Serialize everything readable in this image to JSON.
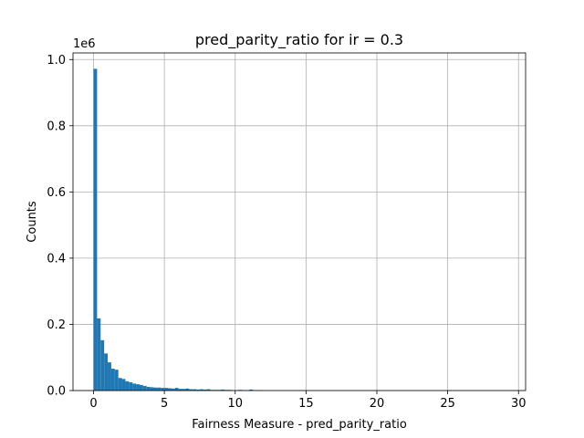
{
  "chart_data": {
    "type": "bar",
    "title": "pred_parity_ratio for ir = 0.3",
    "xlabel": "Fairness Measure - pred_parity_ratio",
    "ylabel": "Counts",
    "y_offset_label": "1e6",
    "xlim": [
      -1.45,
      30.5
    ],
    "ylim": [
      0,
      1.02
    ],
    "x_ticks": [
      0,
      5,
      10,
      15,
      20,
      25,
      30
    ],
    "y_ticks": [
      0.0,
      0.2,
      0.4,
      0.6,
      0.8,
      1.0
    ],
    "grid": true,
    "bar_color": "#1f77b4",
    "bin_width": 0.25,
    "bins_x_start": [
      0.0,
      0.25,
      0.5,
      0.75,
      1.0,
      1.25,
      1.5,
      1.75,
      2.0,
      2.25,
      2.5,
      2.75,
      3.0,
      3.25,
      3.5,
      3.75,
      4.0,
      4.25,
      4.5,
      4.75,
      5.0,
      5.25,
      5.5,
      5.75,
      6.0,
      6.25,
      6.5,
      6.75,
      7.0,
      7.25,
      7.5,
      7.75,
      8.0,
      8.25,
      8.5,
      8.75,
      9.0,
      9.25,
      9.5,
      9.75,
      10.0,
      10.25,
      10.5,
      10.75,
      11.0,
      11.25,
      11.5,
      11.75
    ],
    "values_millions": [
      0.972,
      0.218,
      0.152,
      0.112,
      0.085,
      0.066,
      0.063,
      0.038,
      0.035,
      0.028,
      0.025,
      0.021,
      0.019,
      0.017,
      0.014,
      0.011,
      0.01,
      0.009,
      0.009,
      0.008,
      0.008,
      0.007,
      0.006,
      0.008,
      0.005,
      0.005,
      0.006,
      0.004,
      0.004,
      0.003,
      0.004,
      0.003,
      0.004,
      0.002,
      0.002,
      0.002,
      0.003,
      0.002,
      0.002,
      0.001,
      0.001,
      0.002,
      0.001,
      0.001,
      0.003,
      0.001,
      0.001,
      0.001
    ]
  }
}
